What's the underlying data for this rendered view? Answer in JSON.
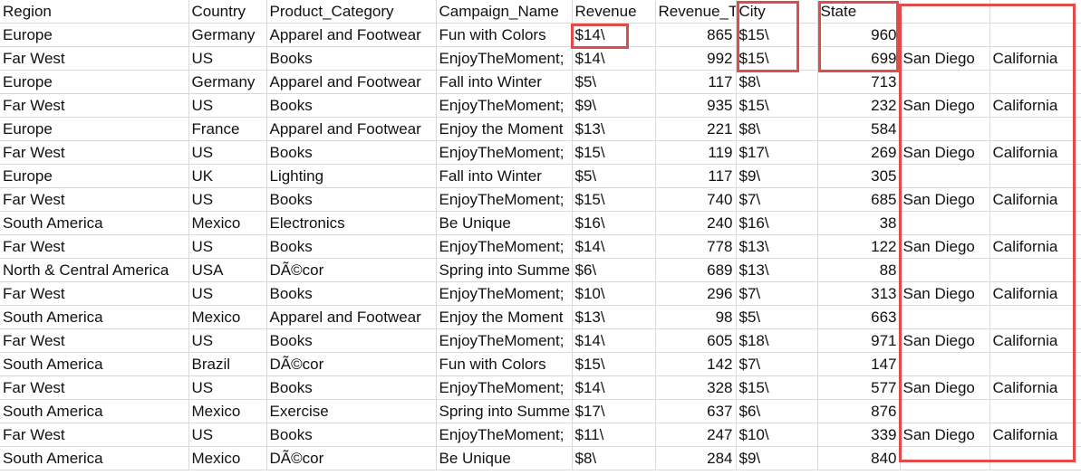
{
  "sheet": {
    "headers": [
      "Region",
      "Country",
      "Product_Category",
      "Campaign_Name",
      "Revenue",
      "Revenue_T",
      "City",
      "State",
      "",
      ""
    ],
    "rows": [
      [
        "Europe",
        "Germany",
        "Apparel and Footwear",
        "Fun with Colors",
        "$14\\",
        "865",
        "$15\\",
        "960",
        "",
        ""
      ],
      [
        "Far West",
        "US",
        "Books",
        "EnjoyTheMoment;",
        "$14\\",
        "992",
        "$15\\",
        "699",
        "San Diego",
        "California"
      ],
      [
        "Europe",
        "Germany",
        "Apparel and Footwear",
        "Fall into Winter",
        "$5\\",
        "117",
        "$8\\",
        "713",
        "",
        ""
      ],
      [
        "Far West",
        "US",
        "Books",
        "EnjoyTheMoment;",
        "$9\\",
        "935",
        "$15\\",
        "232",
        "San Diego",
        "California"
      ],
      [
        "Europe",
        "France",
        "Apparel and Footwear",
        "Enjoy the Moment",
        "$13\\",
        "221",
        "$8\\",
        "584",
        "",
        ""
      ],
      [
        "Far West",
        "US",
        "Books",
        "EnjoyTheMoment;",
        "$15\\",
        "119",
        "$17\\",
        "269",
        "San Diego",
        "California"
      ],
      [
        "Europe",
        "UK",
        "Lighting",
        "Fall into Winter",
        "$5\\",
        "117",
        "$9\\",
        "305",
        "",
        ""
      ],
      [
        "Far West",
        "US",
        "Books",
        "EnjoyTheMoment;",
        "$15\\",
        "740",
        "$7\\",
        "685",
        "San Diego",
        "California"
      ],
      [
        "South America",
        "Mexico",
        "Electronics",
        "Be Unique",
        "$16\\",
        "240",
        "$16\\",
        "38",
        "",
        ""
      ],
      [
        "Far West",
        "US",
        "Books",
        "EnjoyTheMoment;",
        "$14\\",
        "778",
        "$13\\",
        "122",
        "San Diego",
        "California"
      ],
      [
        "North & Central America",
        "USA",
        "DÃ©cor",
        "Spring into Summe",
        "$6\\",
        "689",
        "$13\\",
        "88",
        "",
        ""
      ],
      [
        "Far West",
        "US",
        "Books",
        "EnjoyTheMoment;",
        "$10\\",
        "296",
        "$7\\",
        "313",
        "San Diego",
        "California"
      ],
      [
        "South America",
        "Mexico",
        "Apparel and Footwear",
        "Enjoy the Moment",
        "$13\\",
        "98",
        "$5\\",
        "663",
        "",
        ""
      ],
      [
        "Far West",
        "US",
        "Books",
        "EnjoyTheMoment;",
        "$14\\",
        "605",
        "$18\\",
        "971",
        "San Diego",
        "California"
      ],
      [
        "South America",
        "Brazil",
        "DÃ©cor",
        "Fun with Colors",
        "$15\\",
        "142",
        "$7\\",
        "147",
        "",
        ""
      ],
      [
        "Far West",
        "US",
        "Books",
        "EnjoyTheMoment;",
        "$14\\",
        "328",
        "$15\\",
        "577",
        "San Diego",
        "California"
      ],
      [
        "South America",
        "Mexico",
        "Exercise",
        "Spring into Summe",
        "$17\\",
        "637",
        "$6\\",
        "876",
        "",
        ""
      ],
      [
        "Far West",
        "US",
        "Books",
        "EnjoyTheMoment;",
        "$11\\",
        "247",
        "$10\\",
        "339",
        "San Diego",
        "California"
      ],
      [
        "South America",
        "Mexico",
        "DÃ©cor",
        "Be Unique",
        "$8\\",
        "284",
        "$9\\",
        "840",
        "",
        ""
      ]
    ],
    "numeric_columns": [
      5,
      7
    ]
  },
  "highlight_color": "#e04b4b",
  "grid_color": "#d9d9d9"
}
